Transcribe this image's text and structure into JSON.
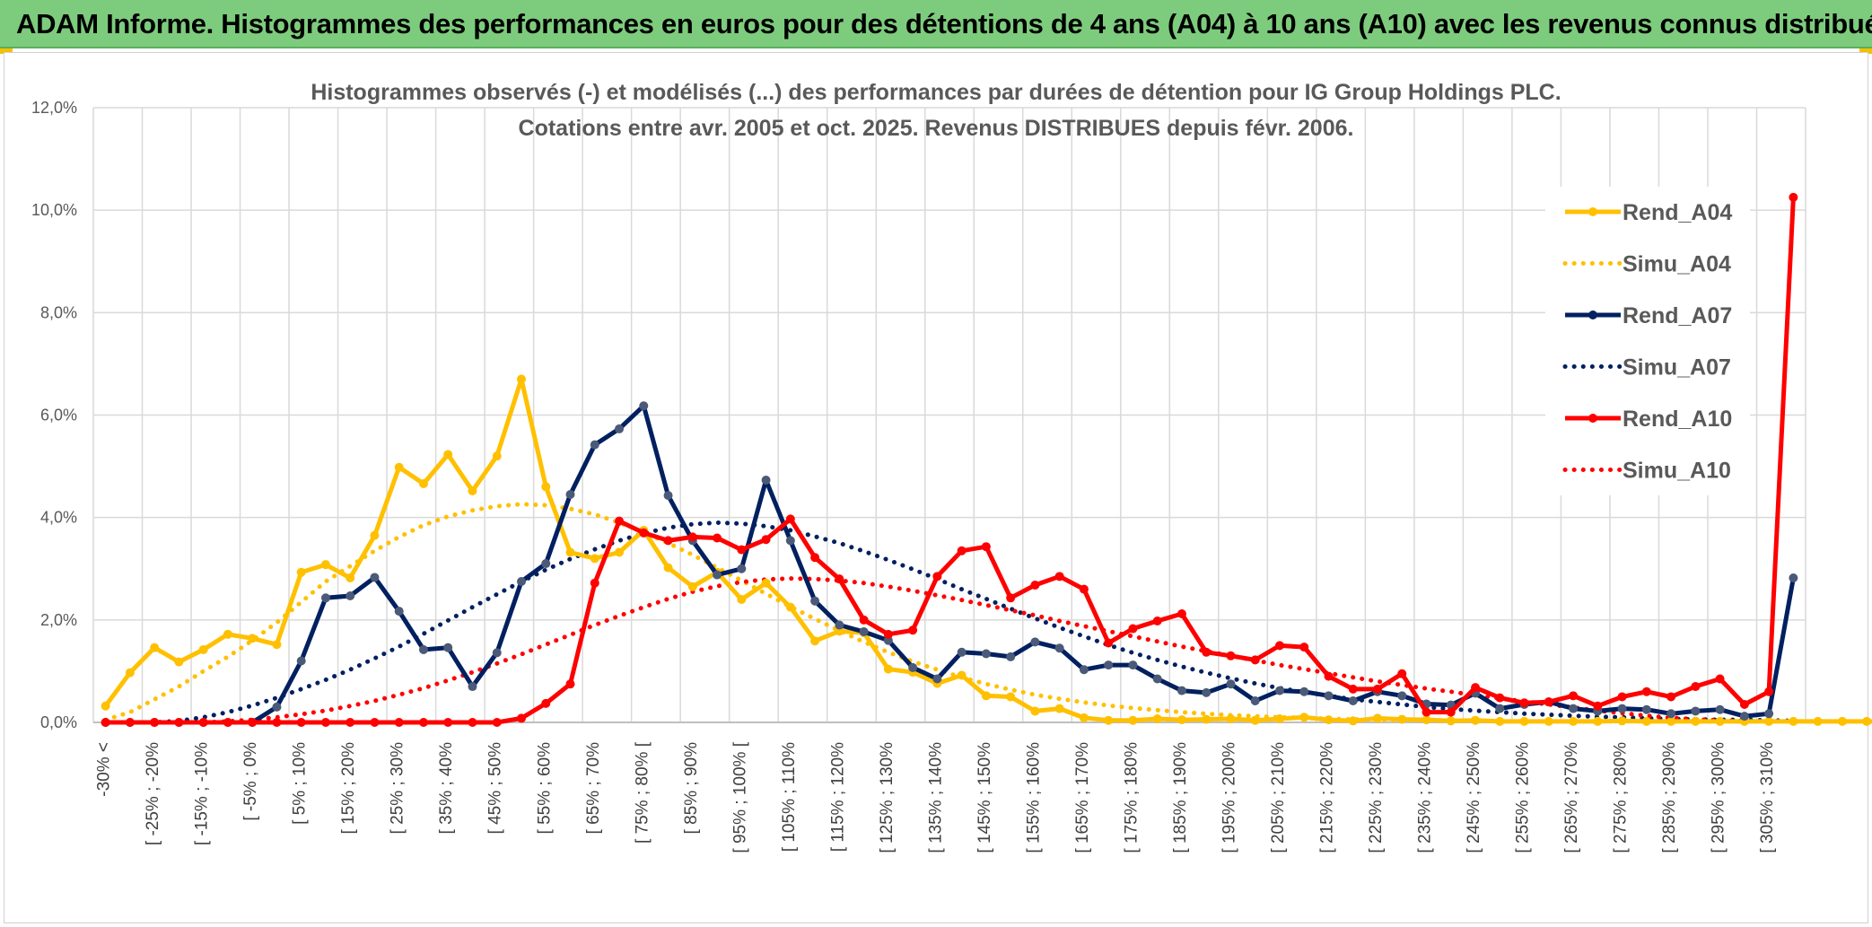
{
  "banner": {
    "title": "ADAM Informe. Histogrammes des performances en euros pour des détentions de 4 ans (A04) à 10 ans (A10) avec les revenus connus distribués"
  },
  "colors": {
    "banner_bg": "#7dcc7d",
    "A04": "#ffc000",
    "A07": "#002060",
    "A10": "#ff0000",
    "grid": "#d9d9d9"
  },
  "chart_data": {
    "type": "line",
    "title": "Histogrammes observés (-) et modélisés (...) des performances par durées de détention pour IG Group Holdings PLC.",
    "subtitle": "Cotations entre avr. 2005 et oct. 2025. Revenus DISTRIBUES depuis févr. 2006.",
    "xlabel": "",
    "ylabel": "",
    "ylim": [
      0,
      12
    ],
    "yticks": [
      "0,0%",
      "2,0%",
      "4,0%",
      "6,0%",
      "8,0%",
      "10,0%",
      "12,0%"
    ],
    "grid": true,
    "legend_position": "right",
    "x_labels": [
      "-30% <",
      "[ -25% ; -20%",
      "[ -15% ; -10%",
      "[ -5% ; 0%",
      "[ 5% ; 10%",
      "[ 15% ; 20%",
      "[ 25% ; 30%",
      "[ 35% ; 40%",
      "[ 45% ; 50%",
      "[ 55% ; 60%",
      "[ 65% ; 70%",
      "[ 75% ; 80% [",
      "[ 85% ; 90%",
      "[ 95% ; 100% [",
      "[ 105% ; 110%",
      "[ 115% ; 120%",
      "[ 125% ; 130%",
      "[ 135% ; 140%",
      "[ 145% ; 150%",
      "[ 155% ; 160%",
      "[ 165% ; 170%",
      "[ 175% ; 180%",
      "[ 185% ; 190%",
      "[ 195% ; 200%",
      "[ 205% ; 210%",
      "[ 215% ; 220%",
      "[ 225% ; 230%",
      "[ 235% ; 240%",
      "[ 245% ; 250%",
      "[ 255% ; 260%",
      "[ 265% ; 270%",
      "[ 275% ; 280%",
      "[ 285% ; 290%",
      "[ 295% ; 300%",
      "[ 305% ; 310%"
    ],
    "series": [
      {
        "name": "Rend_A04",
        "style": "solid",
        "color": "#ffc000",
        "values": [
          0.32,
          0.97,
          1.46,
          1.18,
          1.42,
          1.72,
          1.64,
          1.52,
          2.93,
          3.08,
          2.82,
          3.65,
          4.98,
          4.66,
          5.23,
          4.52,
          5.2,
          6.7,
          4.6,
          3.32,
          3.2,
          3.32,
          3.75,
          3.02,
          2.65,
          2.93,
          2.4,
          2.72,
          2.25,
          1.59,
          1.78,
          1.75,
          1.04,
          0.98,
          0.76,
          0.92,
          0.52,
          0.5,
          0.22,
          0.27,
          0.09,
          0.04,
          0.04,
          0.07,
          0.05,
          0.06,
          0.07,
          0.04,
          0.07,
          0.1,
          0.05,
          0.03,
          0.08,
          0.06,
          0.05,
          0.03,
          0.04,
          0.02,
          0.02,
          0.02,
          0.02,
          0.02,
          0.03,
          0.02,
          0.02,
          0.02,
          0.02,
          0.02,
          0.02,
          0.02,
          0.02,
          0.02,
          0.02,
          0.02,
          0.02,
          0.02
        ]
      },
      {
        "name": "Simu_A04",
        "style": "dotted",
        "color": "#ffc000",
        "values": [
          0.05,
          0.2,
          0.45,
          0.7,
          1.0,
          1.28,
          1.6,
          1.95,
          2.35,
          2.75,
          3.05,
          3.35,
          3.62,
          3.85,
          4.02,
          4.14,
          4.22,
          4.26,
          4.24,
          4.17,
          4.06,
          3.9,
          3.71,
          3.5,
          3.27,
          3.02,
          2.77,
          2.51,
          2.26,
          2.02,
          1.79,
          1.57,
          1.37,
          1.19,
          1.03,
          0.88,
          0.75,
          0.64,
          0.54,
          0.46,
          0.39,
          0.33,
          0.28,
          0.24,
          0.2,
          0.17,
          0.14,
          0.12,
          0.1,
          0.09,
          0.07,
          0.06,
          0.05,
          0.04,
          0.04,
          0.03,
          0.03,
          0.02,
          0.02,
          0.02,
          0.02,
          0.02,
          0.02,
          0.02,
          0.02,
          0.02,
          0.02,
          0.02,
          0.02,
          0.02,
          0.02,
          0.02,
          0.02,
          0.02,
          0.02,
          0.02
        ]
      },
      {
        "name": "Rend_A07",
        "style": "solid",
        "color": "#002060",
        "values": [
          0,
          0,
          0,
          0,
          0,
          0,
          0,
          0.3,
          1.2,
          2.43,
          2.47,
          2.83,
          2.17,
          1.42,
          1.46,
          0.7,
          1.36,
          2.75,
          3.1,
          4.45,
          5.42,
          5.73,
          6.18,
          4.43,
          3.55,
          2.88,
          3.0,
          4.73,
          3.55,
          2.37,
          1.9,
          1.77,
          1.6,
          1.07,
          0.85,
          1.37,
          1.34,
          1.28,
          1.57,
          1.45,
          1.03,
          1.12,
          1.12,
          0.85,
          0.62,
          0.58,
          0.75,
          0.42,
          0.62,
          0.6,
          0.52,
          0.42,
          0.6,
          0.52,
          0.36,
          0.34,
          0.57,
          0.27,
          0.35,
          0.4,
          0.27,
          0.22,
          0.27,
          0.25,
          0.17,
          0.22,
          0.25,
          0.12,
          0.17,
          2.82
        ]
      },
      {
        "name": "Simu_A07",
        "style": "dotted",
        "color": "#002060",
        "values": [
          0,
          0,
          0,
          0.03,
          0.1,
          0.2,
          0.33,
          0.48,
          0.65,
          0.83,
          1.03,
          1.25,
          1.48,
          1.73,
          1.99,
          2.25,
          2.5,
          2.75,
          2.98,
          3.19,
          3.38,
          3.55,
          3.69,
          3.8,
          3.87,
          3.9,
          3.88,
          3.83,
          3.75,
          3.63,
          3.5,
          3.34,
          3.17,
          2.99,
          2.8,
          2.6,
          2.41,
          2.22,
          2.03,
          1.85,
          1.68,
          1.51,
          1.36,
          1.22,
          1.09,
          0.97,
          0.86,
          0.76,
          0.67,
          0.59,
          0.52,
          0.45,
          0.4,
          0.35,
          0.3,
          0.26,
          0.23,
          0.2,
          0.17,
          0.15,
          0.13,
          0.11,
          0.1,
          0.08,
          0.07,
          0.06,
          0.05,
          0.05,
          0.04,
          0.03
        ]
      },
      {
        "name": "Rend_A10",
        "style": "solid",
        "color": "#ff0000",
        "values": [
          0,
          0,
          0,
          0,
          0,
          0,
          0,
          0,
          0,
          0,
          0,
          0,
          0,
          0,
          0,
          0,
          0,
          0.08,
          0.37,
          0.75,
          2.72,
          3.93,
          3.7,
          3.55,
          3.62,
          3.6,
          3.37,
          3.57,
          3.97,
          3.22,
          2.8,
          2.0,
          1.72,
          1.8,
          2.85,
          3.35,
          3.43,
          2.43,
          2.68,
          2.85,
          2.6,
          1.55,
          1.83,
          1.98,
          2.12,
          1.37,
          1.3,
          1.22,
          1.5,
          1.47,
          0.9,
          0.65,
          0.65,
          0.95,
          0.2,
          0.2,
          0.68,
          0.48,
          0.38,
          0.4,
          0.52,
          0.32,
          0.5,
          0.6,
          0.5,
          0.7,
          0.85,
          0.35,
          0.6,
          10.25
        ]
      },
      {
        "name": "Simu_A10",
        "style": "dotted",
        "color": "#ff0000",
        "values": [
          0,
          0,
          0,
          0,
          0,
          0.02,
          0.05,
          0.1,
          0.16,
          0.23,
          0.32,
          0.42,
          0.54,
          0.67,
          0.82,
          0.98,
          1.15,
          1.33,
          1.52,
          1.71,
          1.9,
          2.08,
          2.25,
          2.41,
          2.55,
          2.66,
          2.74,
          2.79,
          2.81,
          2.8,
          2.77,
          2.72,
          2.65,
          2.57,
          2.48,
          2.39,
          2.29,
          2.19,
          2.09,
          1.98,
          1.88,
          1.78,
          1.68,
          1.58,
          1.48,
          1.39,
          1.3,
          1.21,
          1.12,
          1.04,
          0.96,
          0.88,
          0.8,
          0.73,
          0.66,
          0.6,
          0.53,
          0.47,
          0.41,
          0.35,
          0.29,
          0.23,
          0.18,
          0.13,
          0.09,
          0.06,
          0.04,
          0.02
        ]
      }
    ]
  }
}
